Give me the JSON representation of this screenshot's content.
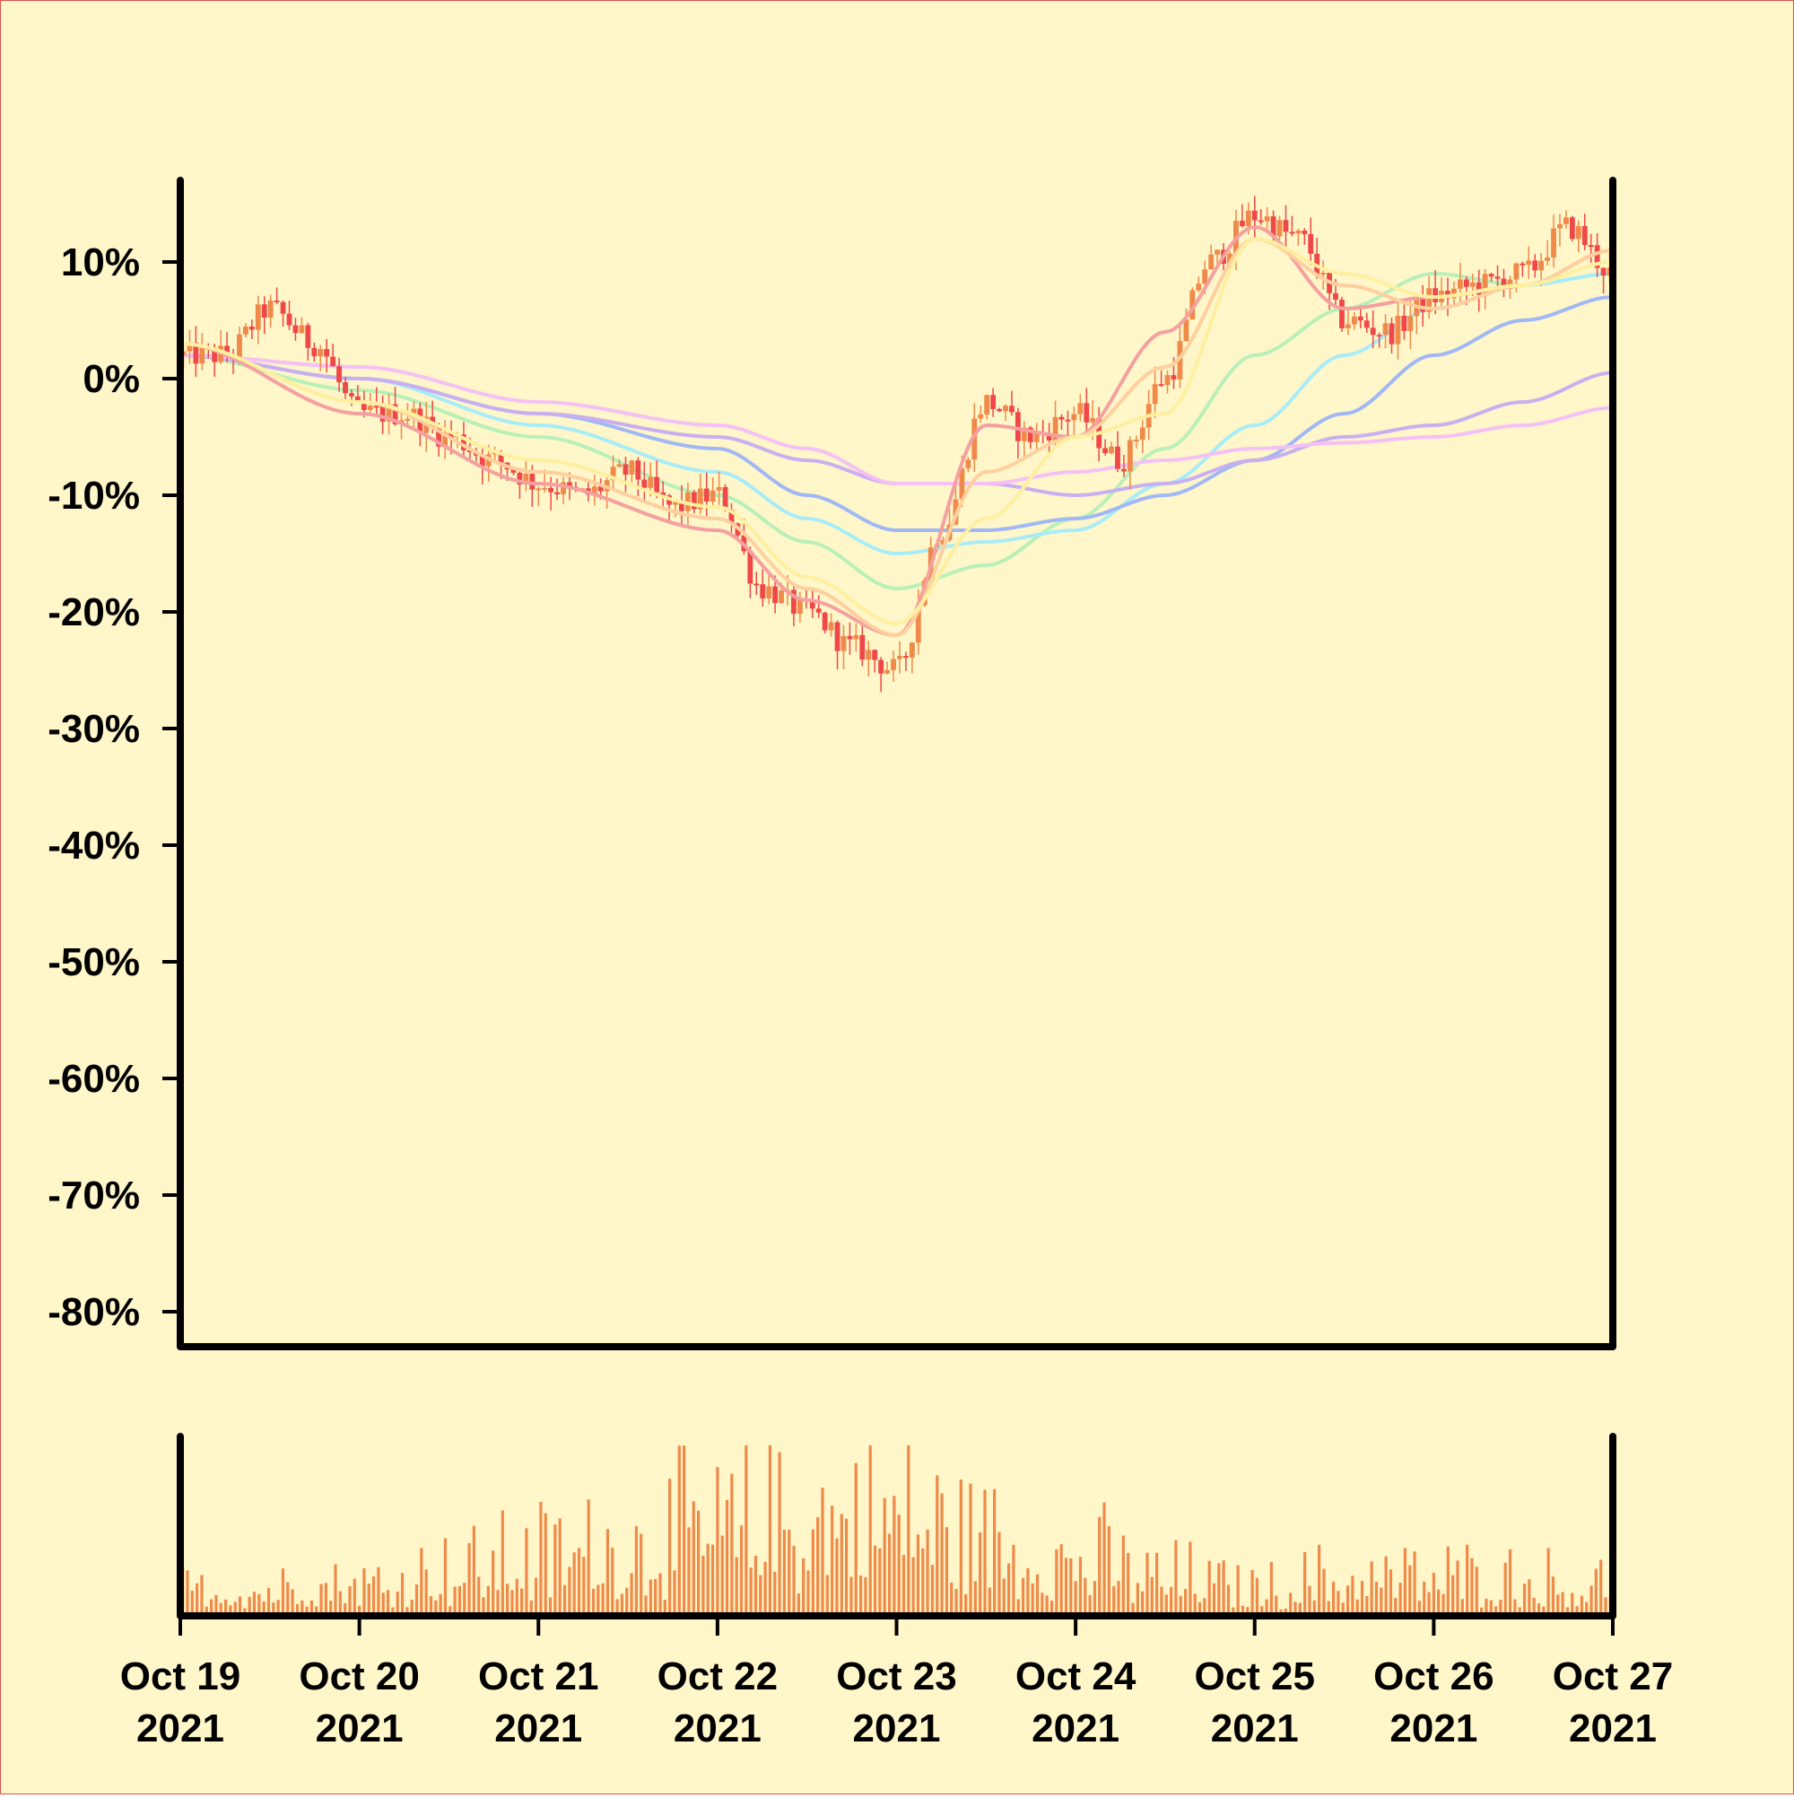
{
  "chart_data": {
    "type": "candlestick",
    "background": "#fff6c9",
    "frame_color": "#d9534f",
    "axis_color": "#000000",
    "colors": {
      "up": "#ef8a4a",
      "down": "#f04848",
      "volume": "#ef8a4a"
    },
    "y_axis": {
      "unit": "%",
      "range": [
        -83,
        17
      ],
      "ticks": [
        10,
        0,
        -10,
        -20,
        -30,
        -40,
        -50,
        -60,
        -70,
        -80
      ],
      "tick_labels": [
        "10%",
        "0%",
        "-10%",
        "-20%",
        "-30%",
        "-40%",
        "-50%",
        "-60%",
        "-70%",
        "-80%"
      ]
    },
    "x_axis": {
      "range": [
        "2021-10-19",
        "2021-10-27"
      ],
      "ticks": [
        {
          "date": "2021-10-19",
          "line1": "Oct 19",
          "line2": "2021"
        },
        {
          "date": "2021-10-20",
          "line1": "Oct 20",
          "line2": "2021"
        },
        {
          "date": "2021-10-21",
          "line1": "Oct 21",
          "line2": "2021"
        },
        {
          "date": "2021-10-22",
          "line1": "Oct 22",
          "line2": "2021"
        },
        {
          "date": "2021-10-23",
          "line1": "Oct 23",
          "line2": "2021"
        },
        {
          "date": "2021-10-24",
          "line1": "Oct 24",
          "line2": "2021"
        },
        {
          "date": "2021-10-25",
          "line1": "Oct 25",
          "line2": "2021"
        },
        {
          "date": "2021-10-26",
          "line1": "Oct 26",
          "line2": "2021"
        },
        {
          "date": "2021-10-27",
          "line1": "Oct 27",
          "line2": "2021"
        }
      ]
    },
    "price_path": [
      [
        "2021-10-19T00:00",
        2
      ],
      [
        "2021-10-19T06:00",
        2
      ],
      [
        "2021-10-19T12:00",
        6
      ],
      [
        "2021-10-19T18:00",
        3
      ],
      [
        "2021-10-20T00:00",
        -3
      ],
      [
        "2021-10-20T06:00",
        -3
      ],
      [
        "2021-10-20T12:00",
        -5
      ],
      [
        "2021-10-20T18:00",
        -7
      ],
      [
        "2021-10-21T00:00",
        -9
      ],
      [
        "2021-10-21T06:00",
        -10
      ],
      [
        "2021-10-21T12:00",
        -8
      ],
      [
        "2021-10-21T18:00",
        -11
      ],
      [
        "2021-10-22T00:00",
        -10
      ],
      [
        "2021-10-22T06:00",
        -18
      ],
      [
        "2021-10-22T12:00",
        -20
      ],
      [
        "2021-10-22T18:00",
        -23
      ],
      [
        "2021-10-23T00:00",
        -25
      ],
      [
        "2021-10-23T06:00",
        -13
      ],
      [
        "2021-10-23T12:00",
        -2
      ],
      [
        "2021-10-23T18:00",
        -5
      ],
      [
        "2021-10-24T00:00",
        -3
      ],
      [
        "2021-10-24T06:00",
        -7
      ],
      [
        "2021-10-24T12:00",
        0
      ],
      [
        "2021-10-24T18:00",
        10
      ],
      [
        "2021-10-25T00:00",
        14
      ],
      [
        "2021-10-25T06:00",
        12
      ],
      [
        "2021-10-25T12:00",
        5
      ],
      [
        "2021-10-25T18:00",
        4
      ],
      [
        "2021-10-26T00:00",
        7
      ],
      [
        "2021-10-26T06:00",
        8
      ],
      [
        "2021-10-26T12:00",
        9
      ],
      [
        "2021-10-26T18:00",
        13
      ],
      [
        "2021-10-27T00:00",
        9
      ]
    ],
    "moving_averages": [
      {
        "color": "#f5a0a0",
        "points": [
          [
            "2021-10-19",
            3
          ],
          [
            "2021-10-20",
            -3
          ],
          [
            "2021-10-21",
            -9
          ],
          [
            "2021-10-22",
            -13
          ],
          [
            "2021-10-22T12:00",
            -19
          ],
          [
            "2021-10-23",
            -22
          ],
          [
            "2021-10-23T12:00",
            -4
          ],
          [
            "2021-10-24",
            -5
          ],
          [
            "2021-10-24T12:00",
            4
          ],
          [
            "2021-10-25",
            13
          ],
          [
            "2021-10-25T12:00",
            6
          ],
          [
            "2021-10-26",
            7
          ],
          [
            "2021-10-26T12:00",
            8
          ],
          [
            "2021-10-27",
            11
          ]
        ]
      },
      {
        "color": "#ffcf9e",
        "points": [
          [
            "2021-10-19",
            3
          ],
          [
            "2021-10-20",
            -2
          ],
          [
            "2021-10-21",
            -8
          ],
          [
            "2021-10-22",
            -12
          ],
          [
            "2021-10-22T12:00",
            -18
          ],
          [
            "2021-10-23",
            -22
          ],
          [
            "2021-10-23T12:00",
            -8
          ],
          [
            "2021-10-24",
            -5
          ],
          [
            "2021-10-24T12:00",
            1
          ],
          [
            "2021-10-25",
            12
          ],
          [
            "2021-10-25T12:00",
            8
          ],
          [
            "2021-10-26",
            6
          ],
          [
            "2021-10-26T12:00",
            8
          ],
          [
            "2021-10-27",
            11
          ]
        ]
      },
      {
        "color": "#fff0a0",
        "points": [
          [
            "2021-10-19",
            3
          ],
          [
            "2021-10-20",
            -2
          ],
          [
            "2021-10-21",
            -7
          ],
          [
            "2021-10-22",
            -11
          ],
          [
            "2021-10-22T12:00",
            -17
          ],
          [
            "2021-10-23",
            -21
          ],
          [
            "2021-10-23T12:00",
            -12
          ],
          [
            "2021-10-24",
            -5
          ],
          [
            "2021-10-24T12:00",
            -3
          ],
          [
            "2021-10-25",
            12
          ],
          [
            "2021-10-25T12:00",
            9
          ],
          [
            "2021-10-26",
            7
          ],
          [
            "2021-10-26T12:00",
            8
          ],
          [
            "2021-10-27",
            10
          ]
        ]
      },
      {
        "color": "#b8f0b8",
        "points": [
          [
            "2021-10-19",
            2
          ],
          [
            "2021-10-20",
            -1
          ],
          [
            "2021-10-21",
            -5
          ],
          [
            "2021-10-22",
            -10
          ],
          [
            "2021-10-22T12:00",
            -14
          ],
          [
            "2021-10-23",
            -18
          ],
          [
            "2021-10-23T12:00",
            -16
          ],
          [
            "2021-10-24",
            -12
          ],
          [
            "2021-10-24T12:00",
            -6
          ],
          [
            "2021-10-25",
            2
          ],
          [
            "2021-10-25T12:00",
            6
          ],
          [
            "2021-10-26",
            9
          ],
          [
            "2021-10-26T12:00",
            8
          ],
          [
            "2021-10-27",
            9
          ]
        ]
      },
      {
        "color": "#a8ecf8",
        "points": [
          [
            "2021-10-19",
            2
          ],
          [
            "2021-10-20",
            0
          ],
          [
            "2021-10-21",
            -4
          ],
          [
            "2021-10-22",
            -8
          ],
          [
            "2021-10-22T12:00",
            -12
          ],
          [
            "2021-10-23",
            -15
          ],
          [
            "2021-10-23T12:00",
            -14
          ],
          [
            "2021-10-24",
            -13
          ],
          [
            "2021-10-24T12:00",
            -9
          ],
          [
            "2021-10-25",
            -4
          ],
          [
            "2021-10-25T12:00",
            2
          ],
          [
            "2021-10-26",
            6
          ],
          [
            "2021-10-26T12:00",
            8
          ],
          [
            "2021-10-27",
            9
          ]
        ]
      },
      {
        "color": "#a0b8f5",
        "points": [
          [
            "2021-10-19",
            2
          ],
          [
            "2021-10-20",
            0
          ],
          [
            "2021-10-21",
            -3
          ],
          [
            "2021-10-22",
            -6
          ],
          [
            "2021-10-22T12:00",
            -10
          ],
          [
            "2021-10-23",
            -13
          ],
          [
            "2021-10-23T12:00",
            -13
          ],
          [
            "2021-10-24",
            -12
          ],
          [
            "2021-10-24T12:00",
            -10
          ],
          [
            "2021-10-25",
            -7
          ],
          [
            "2021-10-25T12:00",
            -3
          ],
          [
            "2021-10-26",
            2
          ],
          [
            "2021-10-26T12:00",
            5
          ],
          [
            "2021-10-27",
            7
          ]
        ]
      },
      {
        "color": "#c8b0f0",
        "points": [
          [
            "2021-10-19",
            2
          ],
          [
            "2021-10-20",
            0
          ],
          [
            "2021-10-21",
            -3
          ],
          [
            "2021-10-22",
            -5
          ],
          [
            "2021-10-22T12:00",
            -7
          ],
          [
            "2021-10-23",
            -9
          ],
          [
            "2021-10-23T12:00",
            -9
          ],
          [
            "2021-10-24",
            -10
          ],
          [
            "2021-10-24T12:00",
            -9
          ],
          [
            "2021-10-25",
            -7
          ],
          [
            "2021-10-25T12:00",
            -5
          ],
          [
            "2021-10-26",
            -4
          ],
          [
            "2021-10-26T12:00",
            -2
          ],
          [
            "2021-10-27",
            0.5
          ]
        ]
      },
      {
        "color": "#f5c0f5",
        "points": [
          [
            "2021-10-19",
            2
          ],
          [
            "2021-10-20",
            1
          ],
          [
            "2021-10-21",
            -2
          ],
          [
            "2021-10-22",
            -4
          ],
          [
            "2021-10-22T12:00",
            -6
          ],
          [
            "2021-10-23",
            -9
          ],
          [
            "2021-10-23T12:00",
            -9
          ],
          [
            "2021-10-24",
            -8
          ],
          [
            "2021-10-24T12:00",
            -7
          ],
          [
            "2021-10-25",
            -6
          ],
          [
            "2021-10-25T12:00",
            -5.5
          ],
          [
            "2021-10-26",
            -5
          ],
          [
            "2021-10-26T12:00",
            -4
          ],
          [
            "2021-10-27",
            -2.5
          ]
        ]
      }
    ],
    "volume_profile": [
      [
        "2021-10-19",
        0.2
      ],
      [
        "2021-10-20",
        0.25
      ],
      [
        "2021-10-20T12:00",
        0.35
      ],
      [
        "2021-10-21",
        0.45
      ],
      [
        "2021-10-21T12:00",
        0.55
      ],
      [
        "2021-10-22",
        0.65
      ],
      [
        "2021-10-22T12:00",
        0.75
      ],
      [
        "2021-10-23",
        0.8
      ],
      [
        "2021-10-23T12:00",
        0.55
      ],
      [
        "2021-10-24",
        0.45
      ],
      [
        "2021-10-24T12:00",
        0.3
      ],
      [
        "2021-10-25",
        0.2
      ],
      [
        "2021-10-25T12:00",
        0.3
      ],
      [
        "2021-10-26",
        0.3
      ],
      [
        "2021-10-27",
        0.25
      ]
    ]
  }
}
